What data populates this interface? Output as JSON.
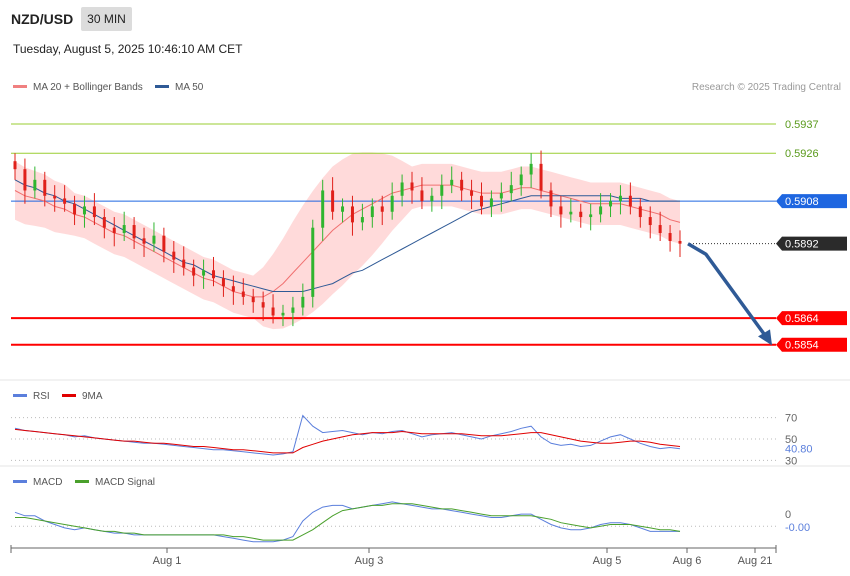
{
  "header": {
    "symbol": "NZD/USD",
    "timeframe": "30 MIN",
    "datetime": "Tuesday, August 5, 2025 10:46:10 AM CET",
    "credit": "Research © 2025 Trading Central"
  },
  "legend": {
    "main": [
      {
        "label": "MA 20 + Bollinger Bands",
        "color": "#f08080"
      },
      {
        "label": "MA 50",
        "color": "#2f5a96"
      }
    ],
    "rsi": [
      {
        "label": "RSI",
        "color": "#5b7fdc"
      },
      {
        "label": "9MA",
        "color": "#e00000"
      }
    ],
    "macd": [
      {
        "label": "MACD",
        "color": "#5b7fdc"
      },
      {
        "label": "MACD Signal",
        "color": "#4aa02c"
      }
    ]
  },
  "colors": {
    "up": "#2fb52f",
    "down": "#e0201a",
    "band": "#ffd6d6",
    "ma20": "#f07070",
    "ma50": "#2f5a96",
    "support": "#ff0000",
    "resistance": "#1e66e0",
    "target": "#9acd32",
    "arrow": "#2f5a96"
  },
  "chart_data": [
    {
      "type": "candlestick",
      "title": "NZD/USD",
      "timeframe": "30 MIN",
      "x_ticks": [
        "Aug 1",
        "Aug 3",
        "Aug 5",
        "Aug 6",
        "Aug 21"
      ],
      "ylim": [
        0.5843,
        0.5943
      ],
      "levels": [
        {
          "value": 0.5937,
          "label": "0.5937",
          "kind": "target"
        },
        {
          "value": 0.5926,
          "label": "0.5926",
          "kind": "target"
        },
        {
          "value": 0.5908,
          "label": "0.5908",
          "kind": "resistance"
        },
        {
          "value": 0.5892,
          "label": "0.5892",
          "kind": "last"
        },
        {
          "value": 0.5864,
          "label": "0.5864",
          "kind": "support"
        },
        {
          "value": 0.5854,
          "label": "0.5854",
          "kind": "support"
        }
      ],
      "closes": [
        0.592,
        0.5912,
        0.5916,
        0.591,
        0.5909,
        0.5907,
        0.5903,
        0.5906,
        0.5902,
        0.5898,
        0.5896,
        0.5899,
        0.5894,
        0.5892,
        0.5895,
        0.5889,
        0.5886,
        0.5883,
        0.588,
        0.5882,
        0.5879,
        0.5876,
        0.5874,
        0.5872,
        0.587,
        0.5868,
        0.5865,
        0.5866,
        0.5868,
        0.5872,
        0.5898,
        0.5912,
        0.5904,
        0.5906,
        0.59,
        0.5902,
        0.5906,
        0.5904,
        0.591,
        0.5915,
        0.5912,
        0.5908,
        0.591,
        0.5914,
        0.5916,
        0.5912,
        0.591,
        0.5906,
        0.5909,
        0.5911,
        0.5914,
        0.5918,
        0.5922,
        0.5912,
        0.5906,
        0.5903,
        0.5904,
        0.5902,
        0.5903,
        0.5906,
        0.5908,
        0.591,
        0.5906,
        0.5902,
        0.5899,
        0.5896,
        0.5893,
        0.5892
      ],
      "ma20": [
        0.5912,
        0.591,
        0.5909,
        0.5908,
        0.5906,
        0.5905,
        0.5903,
        0.5902,
        0.59,
        0.5898,
        0.5896,
        0.5895,
        0.5893,
        0.5891,
        0.5889,
        0.5887,
        0.5885,
        0.5883,
        0.5881,
        0.5879,
        0.5878,
        0.5876,
        0.5874,
        0.5873,
        0.5872,
        0.5872,
        0.5874,
        0.5877,
        0.5881,
        0.5885,
        0.5889,
        0.5893,
        0.5897,
        0.59,
        0.5903,
        0.5905,
        0.5907,
        0.5909,
        0.5911,
        0.5912,
        0.5913,
        0.5914,
        0.5914,
        0.5914,
        0.5914,
        0.5913,
        0.5912,
        0.5911,
        0.5911,
        0.5911,
        0.5912,
        0.5913,
        0.5913,
        0.5912,
        0.5911,
        0.591,
        0.5909,
        0.5908,
        0.5907,
        0.5907,
        0.5907,
        0.5907,
        0.5906,
        0.5905,
        0.5904,
        0.5903,
        0.5901,
        0.59
      ],
      "ma50": [
        0.5916,
        0.5914,
        0.5913,
        0.5911,
        0.591,
        0.5908,
        0.5907,
        0.5905,
        0.5903,
        0.5901,
        0.5899,
        0.5897,
        0.5895,
        0.5893,
        0.5891,
        0.5889,
        0.5887,
        0.5885,
        0.5884,
        0.5882,
        0.588,
        0.5879,
        0.5878,
        0.5877,
        0.5876,
        0.5875,
        0.5874,
        0.5874,
        0.5874,
        0.5874,
        0.5875,
        0.5876,
        0.5877,
        0.5879,
        0.5881,
        0.5882,
        0.5884,
        0.5886,
        0.5888,
        0.589,
        0.5892,
        0.5894,
        0.5896,
        0.5898,
        0.59,
        0.5902,
        0.5904,
        0.5905,
        0.5906,
        0.5907,
        0.5908,
        0.5909,
        0.591,
        0.591,
        0.591,
        0.591,
        0.591,
        0.591,
        0.591,
        0.591,
        0.591,
        0.5909,
        0.5909,
        0.5909,
        0.5908,
        0.5908,
        0.5908,
        0.5908
      ],
      "projection": [
        0.5892,
        0.5888,
        0.5856
      ],
      "last_value": "0.5892"
    },
    {
      "type": "line",
      "title": "RSI",
      "ticks": [
        "70",
        "50",
        "30"
      ],
      "ylim": [
        20,
        80
      ],
      "last_value": "40.80",
      "series": [
        {
          "name": "RSI",
          "values": [
            60,
            58,
            57,
            56,
            55,
            54,
            52,
            53,
            51,
            50,
            49,
            48,
            47,
            46,
            46,
            45,
            44,
            43,
            42,
            41,
            40,
            40,
            39,
            38,
            37,
            36,
            35,
            36,
            38,
            72,
            62,
            56,
            57,
            58,
            56,
            54,
            56,
            55,
            57,
            58,
            55,
            52,
            54,
            55,
            56,
            54,
            52,
            50,
            53,
            55,
            57,
            60,
            62,
            52,
            46,
            44,
            45,
            43,
            44,
            48,
            52,
            54,
            50,
            46,
            43,
            41,
            42,
            40.8
          ]
        },
        {
          "name": "9MA",
          "values": [
            59,
            58,
            57,
            56,
            55,
            54,
            53,
            52,
            51,
            50,
            49,
            48,
            48,
            47,
            46,
            46,
            45,
            44,
            43,
            43,
            42,
            41,
            40,
            40,
            39,
            38,
            37,
            37,
            37,
            42,
            45,
            48,
            50,
            52,
            54,
            55,
            56,
            56,
            56,
            57,
            56,
            55,
            55,
            55,
            55,
            55,
            54,
            53,
            53,
            53,
            54,
            55,
            56,
            56,
            54,
            52,
            50,
            48,
            47,
            46,
            46,
            47,
            48,
            48,
            47,
            45,
            44,
            43
          ]
        }
      ]
    },
    {
      "type": "line",
      "title": "MACD",
      "ticks": [
        "0"
      ],
      "ylim": [
        -0.0012,
        0.0018
      ],
      "last_value": "-0.00",
      "series": [
        {
          "name": "MACD",
          "values": [
            0.0008,
            0.0006,
            0.0006,
            0.0003,
            0.0001,
            -0.0001,
            -0.0002,
            -0.0001,
            -0.0002,
            -0.0003,
            -0.0004,
            -0.0004,
            -0.0005,
            -0.0005,
            -0.0005,
            -0.0005,
            -0.0005,
            -0.0005,
            -0.0005,
            -0.0005,
            -0.0005,
            -0.0006,
            -0.0007,
            -0.0008,
            -0.0009,
            -0.0009,
            -0.0009,
            -0.0008,
            -0.0006,
            0.0003,
            0.0008,
            0.0011,
            0.0012,
            0.0012,
            0.001,
            0.0011,
            0.0012,
            0.0013,
            0.0014,
            0.0013,
            0.0012,
            0.0011,
            0.001,
            0.001,
            0.0009,
            0.0008,
            0.0007,
            0.0006,
            0.0005,
            0.0005,
            0.0006,
            0.0007,
            0.0007,
            0.0004,
            0.0001,
            -0.0001,
            -0.0002,
            -0.0002,
            -0.0001,
            0.0001,
            0.0002,
            0.0002,
            0.0001,
            -0.0001,
            -0.0003,
            -0.0003,
            -0.0003,
            -0.0003
          ]
        },
        {
          "name": "MACD Signal",
          "values": [
            0.0005,
            0.0005,
            0.0004,
            0.0003,
            0.0002,
            0.0001,
            0.0,
            -0.0001,
            -0.0002,
            -0.0003,
            -0.0003,
            -0.0004,
            -0.0004,
            -0.0005,
            -0.0005,
            -0.0005,
            -0.0005,
            -0.0005,
            -0.0005,
            -0.0005,
            -0.0005,
            -0.0005,
            -0.0006,
            -0.0006,
            -0.0007,
            -0.0008,
            -0.0008,
            -0.0008,
            -0.0008,
            -0.0005,
            -0.0002,
            0.0002,
            0.0006,
            0.0009,
            0.001,
            0.0011,
            0.0012,
            0.0012,
            0.0013,
            0.0013,
            0.0013,
            0.0012,
            0.0011,
            0.001,
            0.001,
            0.0009,
            0.0008,
            0.0007,
            0.0006,
            0.0006,
            0.0006,
            0.0006,
            0.0006,
            0.0005,
            0.0004,
            0.0002,
            0.0001,
            0.0,
            -0.0001,
            0.0,
            0.0001,
            0.0001,
            0.0001,
            0.0,
            -0.0001,
            -0.0002,
            -0.0002,
            -0.0003
          ]
        }
      ]
    }
  ]
}
